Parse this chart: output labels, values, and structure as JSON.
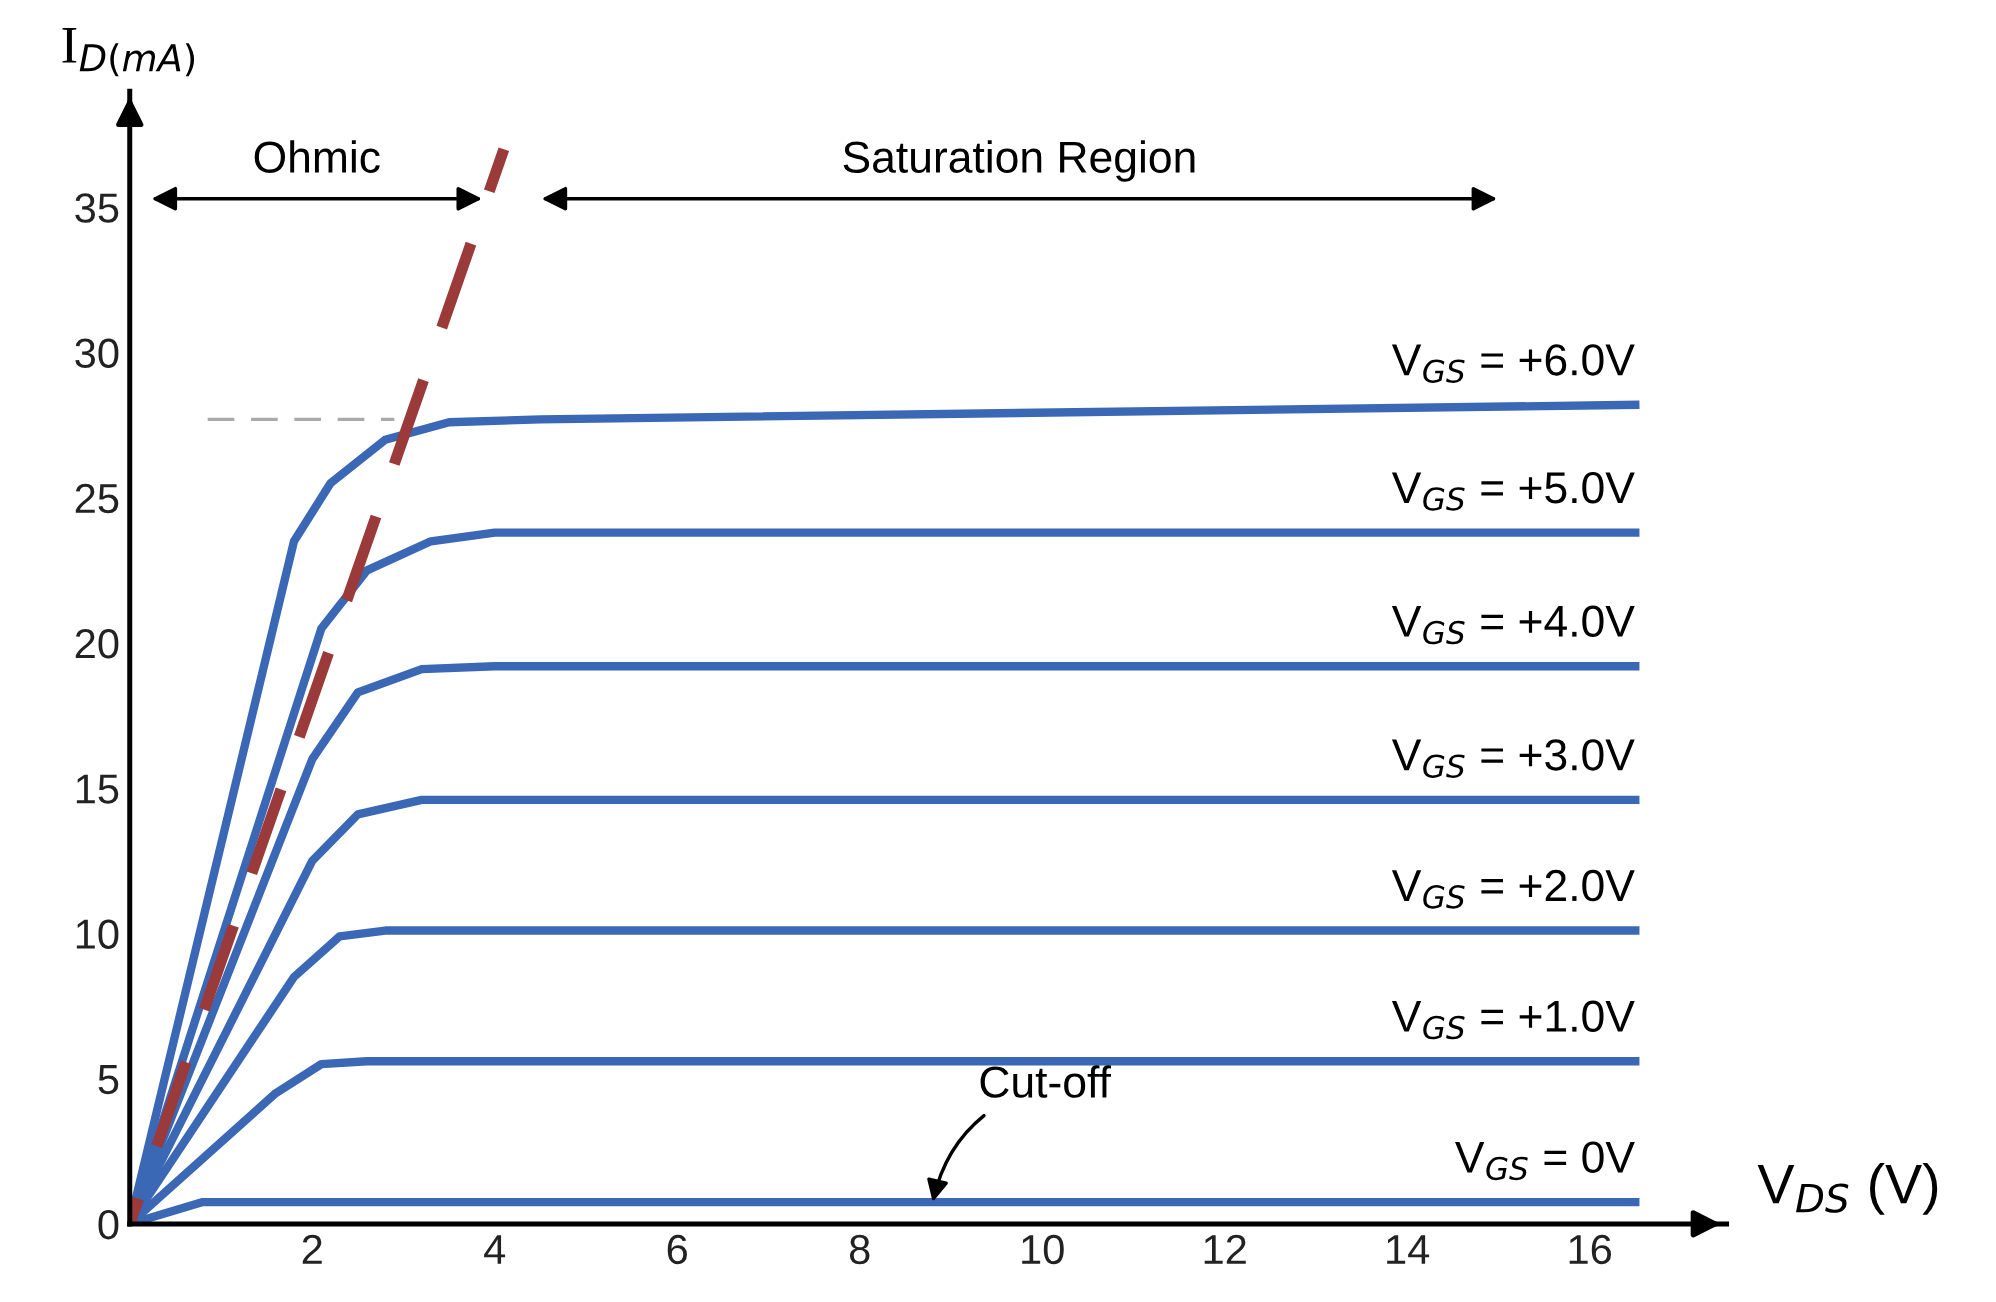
{
  "chart_data": {
    "type": "line",
    "xlabel": "V$_{DS}$ (V)",
    "ylabel": "I$_{D(mA)}$",
    "xlim": [
      0,
      17.5
    ],
    "ylim": [
      0,
      39
    ],
    "xticks": [
      2,
      4,
      6,
      8,
      10,
      12,
      14,
      16
    ],
    "yticks": [
      0,
      5,
      10,
      15,
      20,
      25,
      30,
      35
    ],
    "grid": false,
    "marker": "none",
    "line_style": "solid",
    "series": [
      {
        "name": "V$_{GS}$ = +6.0V",
        "color": "#3a68b4",
        "x": [
          0,
          1.8,
          2.2,
          2.8,
          3.5,
          4.5,
          16.5
        ],
        "values": [
          0,
          23.5,
          25.5,
          27.0,
          27.6,
          27.7,
          28.2
        ]
      },
      {
        "name": "V$_{GS}$ = +5.0V",
        "color": "#3a68b4",
        "x": [
          0,
          2.1,
          2.6,
          3.3,
          4,
          16.5
        ],
        "values": [
          0,
          20.5,
          22.5,
          23.5,
          23.8,
          23.8
        ]
      },
      {
        "name": "V$_{GS}$ = +4.0V",
        "color": "#3a68b4",
        "x": [
          0,
          2.0,
          2.5,
          3.2,
          4,
          16.5
        ],
        "values": [
          0,
          16,
          18.3,
          19.1,
          19.2,
          19.2
        ]
      },
      {
        "name": "V$_{GS}$ = +3.0V",
        "color": "#3a68b4",
        "x": [
          0,
          2.0,
          2.5,
          3.2,
          16.5
        ],
        "values": [
          0,
          12.5,
          14.1,
          14.6,
          14.6
        ]
      },
      {
        "name": "V$_{GS}$ = +2.0V",
        "color": "#3a68b4",
        "x": [
          0,
          1.8,
          2.3,
          2.8,
          16.5
        ],
        "values": [
          0,
          8.5,
          9.9,
          10.1,
          10.1
        ]
      },
      {
        "name": "V$_{GS}$ = +1.0V",
        "color": "#3a68b4",
        "x": [
          0,
          1.6,
          2.1,
          2.6,
          16.5
        ],
        "values": [
          0,
          4.5,
          5.5,
          5.6,
          5.6
        ]
      },
      {
        "name": "V$_{GS}$ = 0V",
        "color": "#3a68b4",
        "x": [
          0,
          0.8,
          16.5
        ],
        "values": [
          0,
          0.75,
          0.75
        ]
      },
      {
        "color": "#9b3a3a",
        "line_style": "dashed",
        "x": [
          0,
          4.1
        ],
        "values": [
          0,
          37
        ]
      },
      {
        "color": "#aaaaaa",
        "line_style": "dashed",
        "x": [
          0.8,
          2.9
        ],
        "values": [
          27.7,
          27.7
        ]
      }
    ],
    "annotations": [
      "Ohmic",
      "Saturation Region",
      {
        "text": "Cut-off",
        "x": 8.8,
        "y": 0.75
      }
    ]
  }
}
